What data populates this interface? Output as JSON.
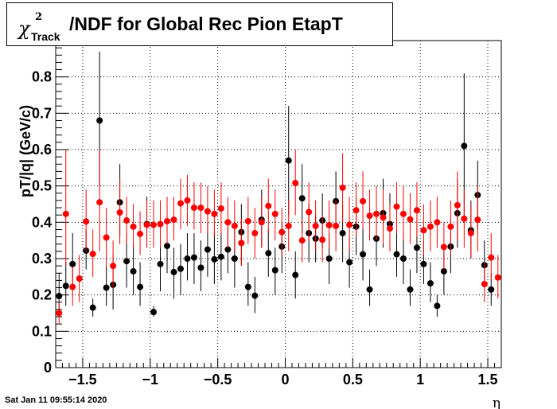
{
  "header": {
    "title_symbol": "χ",
    "title_superscript": "2",
    "title_subscript": "Track",
    "title_text": "/NDF for Global Rec Pion EtapT"
  },
  "footer": {
    "timestamp": "Sat Jan 11 09:55:14 2020"
  },
  "chart_data": {
    "type": "scatter",
    "title": "χ²_Track/NDF for Global Rec Pion EtapT",
    "xlabel": "η",
    "ylabel": "pT/|q| (GeV/c)",
    "xlim": [
      -1.7,
      1.6
    ],
    "ylim": [
      0,
      0.9
    ],
    "xticks": [
      -1.5,
      -1,
      -0.5,
      0,
      0.5,
      1,
      1.5
    ],
    "xtick_labels": [
      "−1.5",
      "−1",
      "−0.5",
      "0",
      "0.5",
      "1",
      "1.5"
    ],
    "yticks": [
      0,
      0.1,
      0.2,
      0.3,
      0.4,
      0.5,
      0.6,
      0.7,
      0.8
    ],
    "ytick_labels": [
      "0",
      "0.1",
      "0.2",
      "0.3",
      "0.4",
      "0.5",
      "0.6",
      "0.7",
      "0.8"
    ],
    "grid": true,
    "series": [
      {
        "color": "#000000",
        "points": [
          [
            -1.675,
            0.197,
            0.15,
            0.26
          ],
          [
            -1.625,
            0.225,
            0.17,
            0.29
          ],
          [
            -1.575,
            0.285,
            0.22,
            0.37
          ],
          [
            -1.475,
            0.322,
            0.27,
            0.38
          ],
          [
            -1.425,
            0.165,
            0.14,
            0.19
          ],
          [
            -1.375,
            0.68,
            0.5,
            0.87
          ],
          [
            -1.325,
            0.22,
            0.17,
            0.28
          ],
          [
            -1.275,
            0.228,
            0.16,
            0.31
          ],
          [
            -1.225,
            0.455,
            0.36,
            0.56
          ],
          [
            -1.175,
            0.293,
            0.22,
            0.37
          ],
          [
            -1.125,
            0.265,
            0.2,
            0.34
          ],
          [
            -1.075,
            0.222,
            0.17,
            0.29
          ],
          [
            -1.025,
            0.395,
            0.33,
            0.47
          ],
          [
            -0.975,
            0.153,
            0.14,
            0.17
          ],
          [
            -0.925,
            0.285,
            0.21,
            0.35
          ],
          [
            -0.875,
            0.335,
            0.26,
            0.42
          ],
          [
            -0.825,
            0.263,
            0.19,
            0.33
          ],
          [
            -0.775,
            0.272,
            0.2,
            0.34
          ],
          [
            -0.725,
            0.3,
            0.24,
            0.37
          ],
          [
            -0.675,
            0.303,
            0.23,
            0.37
          ],
          [
            -0.625,
            0.275,
            0.21,
            0.35
          ],
          [
            -0.575,
            0.325,
            0.25,
            0.4
          ],
          [
            -0.525,
            0.298,
            0.23,
            0.37
          ],
          [
            -0.475,
            0.305,
            0.24,
            0.37
          ],
          [
            -0.425,
            0.325,
            0.26,
            0.39
          ],
          [
            -0.375,
            0.3,
            0.22,
            0.38
          ],
          [
            -0.325,
            0.373,
            0.28,
            0.45
          ],
          [
            -0.275,
            0.222,
            0.17,
            0.29
          ],
          [
            -0.225,
            0.198,
            0.15,
            0.25
          ],
          [
            -0.175,
            0.407,
            0.33,
            0.49
          ],
          [
            -0.125,
            0.315,
            0.25,
            0.38
          ],
          [
            -0.075,
            0.268,
            0.2,
            0.33
          ],
          [
            -0.025,
            0.333,
            0.26,
            0.4
          ],
          [
            0.025,
            0.57,
            0.42,
            0.72
          ],
          [
            0.075,
            0.255,
            0.19,
            0.32
          ],
          [
            0.125,
            0.466,
            0.37,
            0.56
          ],
          [
            0.175,
            0.37,
            0.29,
            0.45
          ],
          [
            0.225,
            0.355,
            0.29,
            0.42
          ],
          [
            0.275,
            0.405,
            0.33,
            0.48
          ],
          [
            0.325,
            0.3,
            0.23,
            0.37
          ],
          [
            0.375,
            0.458,
            0.37,
            0.54
          ],
          [
            0.425,
            0.37,
            0.29,
            0.45
          ],
          [
            0.475,
            0.29,
            0.22,
            0.36
          ],
          [
            0.525,
            0.388,
            0.31,
            0.47
          ],
          [
            0.575,
            0.312,
            0.24,
            0.38
          ],
          [
            0.625,
            0.215,
            0.17,
            0.27
          ],
          [
            0.675,
            0.355,
            0.28,
            0.44
          ],
          [
            0.725,
            0.425,
            0.33,
            0.52
          ],
          [
            0.775,
            0.395,
            0.32,
            0.48
          ],
          [
            0.825,
            0.312,
            0.25,
            0.38
          ],
          [
            0.875,
            0.3,
            0.23,
            0.37
          ],
          [
            0.925,
            0.215,
            0.17,
            0.27
          ],
          [
            0.975,
            0.33,
            0.26,
            0.41
          ],
          [
            1.025,
            0.285,
            0.23,
            0.35
          ],
          [
            1.075,
            0.232,
            0.18,
            0.29
          ],
          [
            1.125,
            0.17,
            0.14,
            0.2
          ],
          [
            1.175,
            0.265,
            0.2,
            0.34
          ],
          [
            1.225,
            0.333,
            0.26,
            0.41
          ],
          [
            1.275,
            0.425,
            0.33,
            0.52
          ],
          [
            1.325,
            0.61,
            0.42,
            0.81
          ],
          [
            1.375,
            0.378,
            0.3,
            0.46
          ],
          [
            1.425,
            0.475,
            0.38,
            0.57
          ],
          [
            1.475,
            0.282,
            0.22,
            0.35
          ],
          [
            1.525,
            0.215,
            0.17,
            0.26
          ]
        ]
      },
      {
        "color": "#ff0000",
        "points": [
          [
            -1.675,
            0.15,
            0.12,
            0.18
          ],
          [
            -1.625,
            0.423,
            0.28,
            0.6
          ],
          [
            -1.575,
            0.222,
            0.17,
            0.28
          ],
          [
            -1.525,
            0.245,
            0.18,
            0.31
          ],
          [
            -1.475,
            0.402,
            0.32,
            0.49
          ],
          [
            -1.425,
            0.313,
            0.25,
            0.38
          ],
          [
            -1.375,
            0.455,
            0.32,
            0.6
          ],
          [
            -1.325,
            0.358,
            0.28,
            0.44
          ],
          [
            -1.275,
            0.28,
            0.22,
            0.35
          ],
          [
            -1.225,
            0.427,
            0.34,
            0.52
          ],
          [
            -1.175,
            0.405,
            0.34,
            0.47
          ],
          [
            -1.125,
            0.388,
            0.33,
            0.45
          ],
          [
            -1.075,
            0.368,
            0.31,
            0.43
          ],
          [
            -1.025,
            0.393,
            0.33,
            0.46
          ],
          [
            -0.975,
            0.393,
            0.33,
            0.46
          ],
          [
            -0.925,
            0.395,
            0.33,
            0.46
          ],
          [
            -0.875,
            0.403,
            0.34,
            0.47
          ],
          [
            -0.825,
            0.407,
            0.35,
            0.47
          ],
          [
            -0.775,
            0.452,
            0.38,
            0.52
          ],
          [
            -0.725,
            0.46,
            0.39,
            0.53
          ],
          [
            -0.675,
            0.44,
            0.38,
            0.51
          ],
          [
            -0.625,
            0.44,
            0.37,
            0.51
          ],
          [
            -0.575,
            0.43,
            0.37,
            0.5
          ],
          [
            -0.525,
            0.423,
            0.36,
            0.49
          ],
          [
            -0.475,
            0.438,
            0.37,
            0.51
          ],
          [
            -0.425,
            0.4,
            0.33,
            0.47
          ],
          [
            -0.375,
            0.39,
            0.32,
            0.46
          ],
          [
            -0.325,
            0.343,
            0.28,
            0.41
          ],
          [
            -0.275,
            0.403,
            0.34,
            0.47
          ],
          [
            -0.225,
            0.37,
            0.3,
            0.44
          ],
          [
            -0.175,
            0.4,
            0.33,
            0.47
          ],
          [
            -0.125,
            0.445,
            0.37,
            0.52
          ],
          [
            -0.075,
            0.423,
            0.35,
            0.49
          ],
          [
            -0.025,
            0.373,
            0.31,
            0.44
          ],
          [
            0.025,
            0.39,
            0.32,
            0.46
          ],
          [
            0.075,
            0.508,
            0.42,
            0.6
          ],
          [
            0.125,
            0.35,
            0.29,
            0.41
          ],
          [
            0.175,
            0.428,
            0.35,
            0.51
          ],
          [
            0.225,
            0.39,
            0.32,
            0.46
          ],
          [
            0.275,
            0.352,
            0.29,
            0.42
          ],
          [
            0.325,
            0.392,
            0.33,
            0.46
          ],
          [
            0.375,
            0.39,
            0.32,
            0.46
          ],
          [
            0.425,
            0.495,
            0.4,
            0.59
          ],
          [
            0.475,
            0.393,
            0.32,
            0.47
          ],
          [
            0.525,
            0.433,
            0.36,
            0.51
          ],
          [
            0.575,
            0.458,
            0.38,
            0.54
          ],
          [
            0.625,
            0.418,
            0.35,
            0.49
          ],
          [
            0.675,
            0.423,
            0.35,
            0.5
          ],
          [
            0.725,
            0.413,
            0.34,
            0.49
          ],
          [
            0.775,
            0.383,
            0.32,
            0.45
          ],
          [
            0.825,
            0.443,
            0.37,
            0.51
          ],
          [
            0.875,
            0.423,
            0.35,
            0.5
          ],
          [
            0.925,
            0.408,
            0.34,
            0.48
          ],
          [
            0.975,
            0.433,
            0.36,
            0.51
          ],
          [
            1.025,
            0.378,
            0.31,
            0.45
          ],
          [
            1.075,
            0.388,
            0.32,
            0.46
          ],
          [
            1.125,
            0.4,
            0.33,
            0.47
          ],
          [
            1.175,
            0.332,
            0.27,
            0.4
          ],
          [
            1.225,
            0.388,
            0.31,
            0.46
          ],
          [
            1.275,
            0.447,
            0.35,
            0.54
          ],
          [
            1.325,
            0.41,
            0.33,
            0.49
          ],
          [
            1.375,
            0.37,
            0.3,
            0.45
          ],
          [
            1.425,
            0.407,
            0.32,
            0.5
          ],
          [
            1.475,
            0.23,
            0.18,
            0.29
          ],
          [
            1.525,
            0.303,
            0.24,
            0.37
          ],
          [
            1.575,
            0.248,
            0.19,
            0.31
          ]
        ]
      }
    ]
  }
}
